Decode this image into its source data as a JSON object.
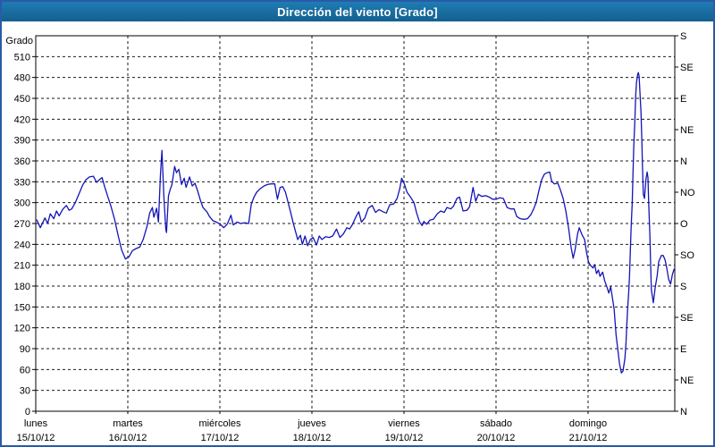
{
  "title": "Dirección del viento [Grado]",
  "colors": {
    "title_bar_top": "#1f7cb4",
    "title_bar_bottom": "#14608f",
    "window_border": "#2a5aa8",
    "line": "#1414b8",
    "grid": "#1a1a1a",
    "text": "#000000",
    "background": "#ffffff"
  },
  "chart_data": {
    "type": "line",
    "title": "Dirección del viento [Grado]",
    "ylabel_left": "Grado",
    "ylim": [
      0,
      540
    ],
    "y_tick_step": 30,
    "grid": "dashed",
    "legend_position": "none",
    "y_left_tick_labels": [
      "0",
      "30",
      "60",
      "90",
      "120",
      "150",
      "180",
      "210",
      "240",
      "270",
      "300",
      "330",
      "360",
      "390",
      "420",
      "450",
      "480",
      "510"
    ],
    "y_right_labels": [
      {
        "deg": 540,
        "label": "S"
      },
      {
        "deg": 495,
        "label": "SE"
      },
      {
        "deg": 450,
        "label": "E"
      },
      {
        "deg": 405,
        "label": "NE"
      },
      {
        "deg": 360,
        "label": "N"
      },
      {
        "deg": 315,
        "label": "NO"
      },
      {
        "deg": 270,
        "label": "O"
      },
      {
        "deg": 225,
        "label": "SO"
      },
      {
        "deg": 180,
        "label": "S"
      },
      {
        "deg": 135,
        "label": "SE"
      },
      {
        "deg": 90,
        "label": "E"
      },
      {
        "deg": 45,
        "label": "NE"
      },
      {
        "deg": 0,
        "label": "N"
      }
    ],
    "x_days": [
      {
        "name": "lunes",
        "date": "15/10/12"
      },
      {
        "name": "martes",
        "date": "16/10/12"
      },
      {
        "name": "miércoles",
        "date": "17/10/12"
      },
      {
        "name": "jueves",
        "date": "18/10/12"
      },
      {
        "name": "viernes",
        "date": "19/10/12"
      },
      {
        "name": "sábado",
        "date": "20/10/12"
      },
      {
        "name": "domingo",
        "date": "21/10/12"
      }
    ],
    "x_unit": "hours_from_monday_00",
    "x_range_hours": [
      0,
      166.7
    ],
    "series": [
      {
        "name": "Dirección del viento",
        "unit": "Grado",
        "points": [
          [
            0.3,
            275
          ],
          [
            1.2,
            264
          ],
          [
            2.4,
            278
          ],
          [
            3.1,
            270
          ],
          [
            3.8,
            284
          ],
          [
            4.7,
            277
          ],
          [
            5.4,
            288
          ],
          [
            6.1,
            281
          ],
          [
            7.1,
            291
          ],
          [
            8,
            296
          ],
          [
            8.7,
            289
          ],
          [
            9.4,
            291
          ],
          [
            10.3,
            300
          ],
          [
            11.3,
            313
          ],
          [
            12.2,
            325
          ],
          [
            13.1,
            333
          ],
          [
            14,
            337
          ],
          [
            15,
            338
          ],
          [
            15.9,
            329
          ],
          [
            16.6,
            333
          ],
          [
            17.3,
            336
          ],
          [
            18,
            322
          ],
          [
            18.7,
            310
          ],
          [
            19.6,
            295
          ],
          [
            20.6,
            275
          ],
          [
            21.5,
            252
          ],
          [
            22.4,
            232
          ],
          [
            23.4,
            219
          ],
          [
            24.3,
            222
          ],
          [
            25.2,
            231
          ],
          [
            26.2,
            234
          ],
          [
            27.1,
            236
          ],
          [
            28,
            247
          ],
          [
            29,
            266
          ],
          [
            29.7,
            285
          ],
          [
            30.4,
            293
          ],
          [
            30.8,
            279
          ],
          [
            31.5,
            292
          ],
          [
            32,
            272
          ],
          [
            32.5,
            340
          ],
          [
            32.9,
            375
          ],
          [
            33.4,
            310
          ],
          [
            33.9,
            262
          ],
          [
            34.1,
            257
          ],
          [
            34.6,
            310
          ],
          [
            35,
            318
          ],
          [
            35.5,
            326
          ],
          [
            36.2,
            352
          ],
          [
            36.7,
            343
          ],
          [
            37.3,
            348
          ],
          [
            38,
            326
          ],
          [
            38.7,
            335
          ],
          [
            39.2,
            322
          ],
          [
            40.1,
            337
          ],
          [
            40.8,
            324
          ],
          [
            41.5,
            328
          ],
          [
            42.2,
            317
          ],
          [
            42.9,
            304
          ],
          [
            43.6,
            293
          ],
          [
            44.6,
            287
          ],
          [
            45.3,
            280
          ],
          [
            46.2,
            274
          ],
          [
            47.1,
            272
          ],
          [
            48.1,
            269
          ],
          [
            49,
            264
          ],
          [
            49.9,
            269
          ],
          [
            50.9,
            282
          ],
          [
            51.5,
            268
          ],
          [
            52.5,
            272
          ],
          [
            53.4,
            270
          ],
          [
            54.6,
            271
          ],
          [
            55.5,
            270
          ],
          [
            56.2,
            298
          ],
          [
            56.9,
            308
          ],
          [
            57.6,
            315
          ],
          [
            58.5,
            320
          ],
          [
            59.5,
            324
          ],
          [
            60.4,
            326
          ],
          [
            61.3,
            327
          ],
          [
            62.3,
            327
          ],
          [
            63,
            305
          ],
          [
            63.7,
            322
          ],
          [
            64.4,
            323
          ],
          [
            65.1,
            315
          ],
          [
            65.8,
            300
          ],
          [
            66.5,
            285
          ],
          [
            67.2,
            269
          ],
          [
            67.9,
            255
          ],
          [
            68.3,
            247
          ],
          [
            69,
            253
          ],
          [
            69.5,
            240
          ],
          [
            70.2,
            252
          ],
          [
            70.9,
            238
          ],
          [
            71.6,
            247
          ],
          [
            72.3,
            250
          ],
          [
            73.2,
            239
          ],
          [
            73.9,
            252
          ],
          [
            74.6,
            247
          ],
          [
            75.6,
            251
          ],
          [
            76.5,
            250
          ],
          [
            77.4,
            252
          ],
          [
            78.4,
            262
          ],
          [
            79.3,
            250
          ],
          [
            80.2,
            255
          ],
          [
            81.1,
            264
          ],
          [
            81.8,
            262
          ],
          [
            82.5,
            268
          ],
          [
            83.5,
            280
          ],
          [
            84.2,
            287
          ],
          [
            84.9,
            272
          ],
          [
            85.8,
            278
          ],
          [
            86.7,
            292
          ],
          [
            87.7,
            296
          ],
          [
            88.6,
            286
          ],
          [
            89.5,
            290
          ],
          [
            90.5,
            287
          ],
          [
            91.4,
            285
          ],
          [
            92.3,
            297
          ],
          [
            93.3,
            298
          ],
          [
            94.2,
            306
          ],
          [
            94.9,
            320
          ],
          [
            95.4,
            335
          ],
          [
            96.1,
            327
          ],
          [
            96.8,
            315
          ],
          [
            97.7,
            308
          ],
          [
            98.6,
            300
          ],
          [
            99.3,
            285
          ],
          [
            100,
            273
          ],
          [
            100.7,
            267
          ],
          [
            101.2,
            273
          ],
          [
            101.9,
            269
          ],
          [
            102.8,
            275
          ],
          [
            103.7,
            276
          ],
          [
            104.7,
            284
          ],
          [
            105.6,
            288
          ],
          [
            106.5,
            286
          ],
          [
            107.2,
            293
          ],
          [
            108.2,
            291
          ],
          [
            108.9,
            295
          ],
          [
            109.8,
            306
          ],
          [
            110.5,
            308
          ],
          [
            111.4,
            288
          ],
          [
            112.4,
            289
          ],
          [
            113.1,
            294
          ],
          [
            114,
            322
          ],
          [
            114.7,
            302
          ],
          [
            115.4,
            312
          ],
          [
            116.3,
            309
          ],
          [
            117.3,
            310
          ],
          [
            118.2,
            308
          ],
          [
            119.1,
            305
          ],
          [
            120.1,
            305
          ],
          [
            121,
            307
          ],
          [
            121.9,
            306
          ],
          [
            122.9,
            293
          ],
          [
            123.8,
            291
          ],
          [
            124.7,
            291
          ],
          [
            125.4,
            280
          ],
          [
            126.3,
            277
          ],
          [
            127.3,
            276
          ],
          [
            128.2,
            277
          ],
          [
            129.1,
            283
          ],
          [
            129.8,
            291
          ],
          [
            130.5,
            301
          ],
          [
            131.2,
            318
          ],
          [
            131.9,
            333
          ],
          [
            132.6,
            341
          ],
          [
            133.3,
            343
          ],
          [
            134,
            344
          ],
          [
            134.5,
            331
          ],
          [
            135.2,
            327
          ],
          [
            136.1,
            328
          ],
          [
            136.8,
            318
          ],
          [
            137.5,
            306
          ],
          [
            138.2,
            288
          ],
          [
            138.9,
            264
          ],
          [
            139.6,
            235
          ],
          [
            140.1,
            220
          ],
          [
            140.6,
            232
          ],
          [
            141.3,
            256
          ],
          [
            141.7,
            264
          ],
          [
            142.4,
            254
          ],
          [
            143.1,
            247
          ],
          [
            143.6,
            228
          ],
          [
            144.1,
            215
          ],
          [
            144.6,
            210
          ],
          [
            145.3,
            206
          ],
          [
            145.7,
            211
          ],
          [
            146.2,
            198
          ],
          [
            146.7,
            203
          ],
          [
            147.1,
            194
          ],
          [
            147.8,
            200
          ],
          [
            148.3,
            188
          ],
          [
            149,
            177
          ],
          [
            149.4,
            170
          ],
          [
            149.9,
            179
          ],
          [
            150.4,
            161
          ],
          [
            150.8,
            146
          ],
          [
            151.3,
            110
          ],
          [
            151.8,
            86
          ],
          [
            152.2,
            68
          ],
          [
            152.7,
            55
          ],
          [
            153.1,
            58
          ],
          [
            153.6,
            76
          ],
          [
            153.9,
            100
          ],
          [
            154.1,
            124
          ],
          [
            154.3,
            146
          ],
          [
            154.6,
            172
          ],
          [
            154.8,
            196
          ],
          [
            155,
            228
          ],
          [
            155.2,
            262
          ],
          [
            155.5,
            300
          ],
          [
            155.7,
            340
          ],
          [
            155.9,
            380
          ],
          [
            156.2,
            420
          ],
          [
            156.4,
            452
          ],
          [
            156.6,
            472
          ],
          [
            156.9,
            484
          ],
          [
            157.1,
            487
          ],
          [
            157.3,
            482
          ],
          [
            157.5,
            462
          ],
          [
            157.8,
            430
          ],
          [
            158,
            392
          ],
          [
            158.2,
            350
          ],
          [
            158.4,
            312
          ],
          [
            158.7,
            306
          ],
          [
            158.9,
            320
          ],
          [
            159.1,
            334
          ],
          [
            159.4,
            344
          ],
          [
            159.6,
            336
          ],
          [
            159.8,
            300
          ],
          [
            160.1,
            255
          ],
          [
            160.3,
            210
          ],
          [
            160.5,
            175
          ],
          [
            161,
            156
          ],
          [
            161.5,
            178
          ],
          [
            162,
            195
          ],
          [
            162.4,
            215
          ],
          [
            163.1,
            224
          ],
          [
            163.6,
            224
          ],
          [
            164.1,
            217
          ],
          [
            164.5,
            206
          ],
          [
            165,
            190
          ],
          [
            165.5,
            183
          ],
          [
            166,
            197
          ],
          [
            166.4,
            204
          ]
        ]
      }
    ]
  }
}
